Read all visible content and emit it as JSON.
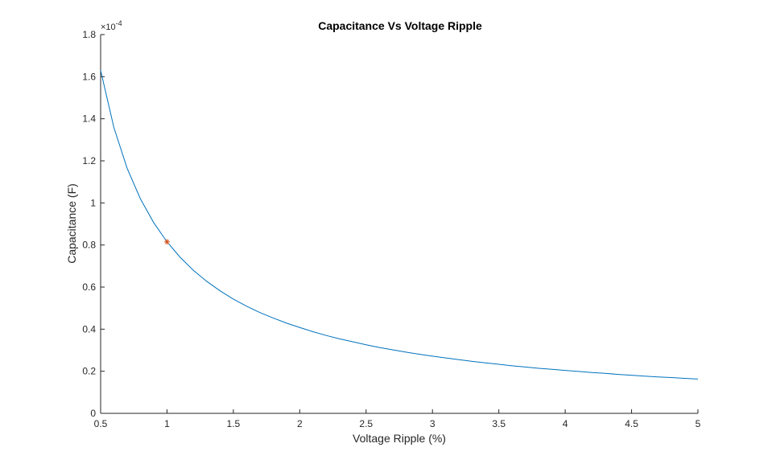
{
  "chart_data": {
    "type": "line",
    "title": "Capacitance Vs Voltage Ripple",
    "xlabel": "Voltage Ripple (%)",
    "ylabel": "Capacitance (F)",
    "y_exponent_mantissa": "×10",
    "y_exponent_power": "-4",
    "xlim": [
      0.5,
      5
    ],
    "ylim": [
      0,
      1.8
    ],
    "x_ticks": [
      0.5,
      1,
      1.5,
      2,
      2.5,
      3,
      3.5,
      4,
      4.5,
      5
    ],
    "x_tick_labels": [
      "0.5",
      "1",
      "1.5",
      "2",
      "2.5",
      "3",
      "3.5",
      "4",
      "4.5",
      "5"
    ],
    "y_ticks": [
      0,
      0.2,
      0.4,
      0.6,
      0.8,
      1,
      1.2,
      1.4,
      1.6,
      1.8
    ],
    "y_tick_labels": [
      "0",
      "0.2",
      "0.4",
      "0.6",
      "0.8",
      "1",
      "1.2",
      "1.4",
      "1.6",
      "1.8"
    ],
    "grid": false,
    "legend": "none",
    "series": [
      {
        "color": "#0072BD",
        "marker": "none",
        "x": [
          0.5,
          0.6,
          0.7,
          0.8,
          0.9,
          1.0,
          1.1,
          1.2,
          1.3,
          1.4,
          1.5,
          1.6,
          1.7,
          1.8,
          1.9,
          2.0,
          2.1,
          2.2,
          2.3,
          2.4,
          2.5,
          2.6,
          2.7,
          2.8,
          2.9,
          3.0,
          3.1,
          3.2,
          3.3,
          3.4,
          3.5,
          3.6,
          3.7,
          3.8,
          3.9,
          4.0,
          4.1,
          4.2,
          4.3,
          4.4,
          4.5,
          4.6,
          4.7,
          4.8,
          4.9,
          5.0
        ],
        "y": [
          1.63,
          1.358,
          1.164,
          1.019,
          0.906,
          0.815,
          0.741,
          0.679,
          0.627,
          0.582,
          0.543,
          0.509,
          0.479,
          0.453,
          0.429,
          0.408,
          0.388,
          0.37,
          0.354,
          0.34,
          0.326,
          0.313,
          0.302,
          0.291,
          0.281,
          0.272,
          0.263,
          0.255,
          0.247,
          0.24,
          0.233,
          0.226,
          0.22,
          0.214,
          0.209,
          0.204,
          0.199,
          0.194,
          0.19,
          0.185,
          0.181,
          0.177,
          0.173,
          0.17,
          0.166,
          0.163
        ]
      },
      {
        "color": "#D95319",
        "marker": "asterisk",
        "line": "none",
        "x": [
          1.0
        ],
        "y": [
          0.815
        ]
      }
    ]
  }
}
